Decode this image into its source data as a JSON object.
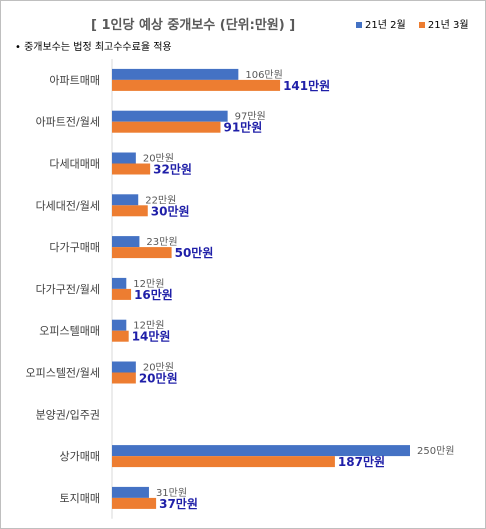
{
  "chart_data": {
    "type": "bar",
    "orientation": "horizontal",
    "title": "[ 1인당 예상 중개보수 (단위:만원) ]",
    "note": "• 중개보수는 법정 최고수수료율 적용",
    "legend_position": "top-right",
    "categories": [
      "아파트매매",
      "아파트전/월세",
      "다세대매매",
      "다세대전/월세",
      "다가구매매",
      "다가구전/월세",
      "오피스텔매매",
      "오피스텔전/월세",
      "분양권/입주권",
      "상가매매",
      "토지매매"
    ],
    "series": [
      {
        "name": "21년 2월",
        "color": "#4472c4",
        "values": [
          106,
          97,
          20,
          22,
          23,
          12,
          12,
          20,
          null,
          250,
          31
        ],
        "labels": [
          "106만원",
          "97만원",
          "20만원",
          "22만원",
          "23만원",
          "12만원",
          "12만원",
          "20만원",
          "",
          "250만원",
          "31만원"
        ]
      },
      {
        "name": "21년 3월",
        "color": "#ed7d31",
        "values": [
          141,
          91,
          32,
          30,
          50,
          16,
          14,
          20,
          null,
          187,
          37
        ],
        "labels": [
          "141만원",
          "91만원",
          "32만원",
          "30만원",
          "50만원",
          "16만원",
          "14만원",
          "20만원",
          "",
          "187만원",
          "37만원"
        ]
      }
    ],
    "xlim": [
      0,
      250
    ],
    "grid": false
  }
}
